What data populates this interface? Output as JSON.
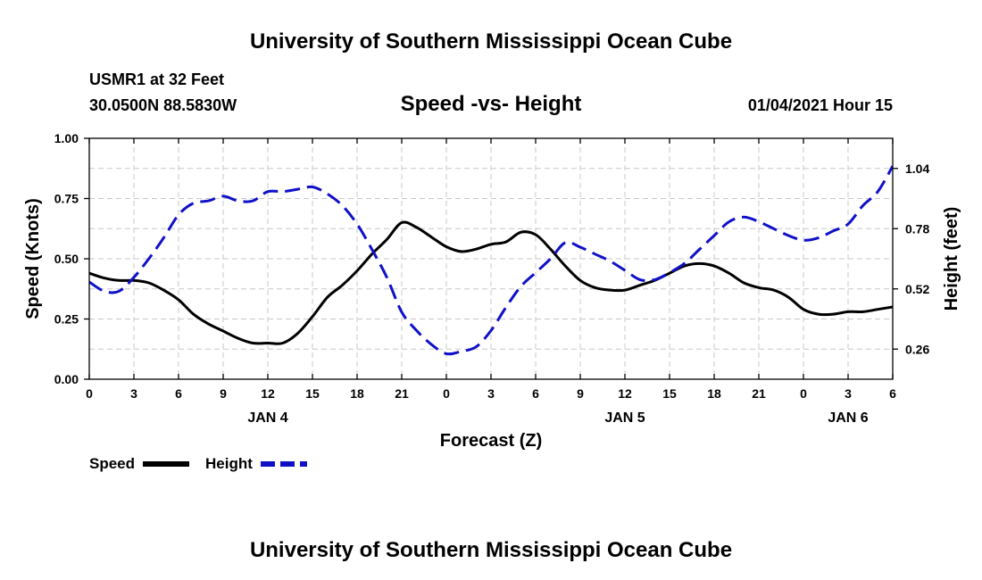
{
  "page": {
    "top_title": "University of Southern Mississippi Ocean Cube",
    "bottom_title": "University of Southern Mississippi Ocean Cube",
    "station_line": "USMR1 at 32 Feet",
    "coords_line": "30.0500N 88.5830W",
    "datetime_line": "01/04/2021 Hour 15"
  },
  "chart_data": {
    "type": "line",
    "title": "Speed -vs- Height",
    "xlabel": "Forecast (Z)",
    "ylabel": "Speed (Knots)",
    "y2label": "Height (feet)",
    "x_unit": "hours since 01/04 00Z",
    "xlim": [
      0,
      54
    ],
    "ylim": [
      0,
      1.0
    ],
    "y2lim": [
      0.13,
      1.17
    ],
    "grid": true,
    "legend": "bottom-left",
    "x_ticks": [
      {
        "x": 0,
        "label": "0"
      },
      {
        "x": 3,
        "label": "3"
      },
      {
        "x": 6,
        "label": "6"
      },
      {
        "x": 9,
        "label": "9"
      },
      {
        "x": 12,
        "label": "12"
      },
      {
        "x": 15,
        "label": "15"
      },
      {
        "x": 18,
        "label": "18"
      },
      {
        "x": 21,
        "label": "21"
      },
      {
        "x": 24,
        "label": "0"
      },
      {
        "x": 27,
        "label": "3"
      },
      {
        "x": 30,
        "label": "6"
      },
      {
        "x": 33,
        "label": "9"
      },
      {
        "x": 36,
        "label": "12"
      },
      {
        "x": 39,
        "label": "15"
      },
      {
        "x": 42,
        "label": "18"
      },
      {
        "x": 45,
        "label": "21"
      },
      {
        "x": 48,
        "label": "0"
      },
      {
        "x": 51,
        "label": "3"
      },
      {
        "x": 54,
        "label": "6"
      }
    ],
    "day_labels": [
      {
        "x": 12,
        "label": "JAN 4"
      },
      {
        "x": 36,
        "label": "JAN 5"
      },
      {
        "x": 51,
        "label": "JAN 6"
      }
    ],
    "y_ticks": [
      {
        "value": 0.0,
        "label": "0.00"
      },
      {
        "value": 0.25,
        "label": "0.25"
      },
      {
        "value": 0.5,
        "label": "0.50"
      },
      {
        "value": 0.75,
        "label": "0.75"
      },
      {
        "value": 1.0,
        "label": "1.00"
      }
    ],
    "y2_ticks": [
      {
        "value": 0.26,
        "label": "0.26"
      },
      {
        "value": 0.52,
        "label": "0.52"
      },
      {
        "value": 0.78,
        "label": "0.78"
      },
      {
        "value": 1.04,
        "label": "1.04"
      }
    ],
    "series": [
      {
        "name": "Speed",
        "axis": "left",
        "color": "#000000",
        "dash": "solid",
        "x": [
          0,
          1,
          2,
          3,
          4,
          5,
          6,
          7,
          8,
          9,
          10,
          11,
          12,
          13,
          14,
          15,
          16,
          17,
          18,
          19,
          20,
          21,
          22,
          23,
          24,
          25,
          26,
          27,
          28,
          29,
          30,
          31,
          32,
          33,
          34,
          35,
          36,
          37,
          38,
          39,
          40,
          41,
          42,
          43,
          44,
          45,
          46,
          47,
          48,
          49,
          50,
          51,
          52,
          53,
          54
        ],
        "values": [
          0.44,
          0.42,
          0.41,
          0.41,
          0.4,
          0.37,
          0.33,
          0.27,
          0.23,
          0.2,
          0.17,
          0.15,
          0.15,
          0.15,
          0.19,
          0.26,
          0.34,
          0.39,
          0.45,
          0.52,
          0.58,
          0.65,
          0.63,
          0.59,
          0.55,
          0.53,
          0.54,
          0.56,
          0.57,
          0.61,
          0.6,
          0.54,
          0.47,
          0.41,
          0.38,
          0.37,
          0.37,
          0.39,
          0.41,
          0.44,
          0.47,
          0.48,
          0.47,
          0.44,
          0.4,
          0.38,
          0.37,
          0.34,
          0.29,
          0.27,
          0.27,
          0.28,
          0.28,
          0.29,
          0.3
        ]
      },
      {
        "name": "Height",
        "axis": "right",
        "color": "#1010c8",
        "dash": "dashed",
        "x": [
          0,
          1,
          2,
          3,
          4,
          5,
          6,
          7,
          8,
          9,
          10,
          11,
          12,
          13,
          14,
          15,
          16,
          17,
          18,
          19,
          20,
          21,
          22,
          23,
          24,
          25,
          26,
          27,
          28,
          29,
          30,
          31,
          32,
          33,
          34,
          35,
          36,
          37,
          38,
          39,
          40,
          41,
          42,
          43,
          44,
          45,
          46,
          47,
          48,
          49,
          50,
          51,
          52,
          53,
          54
        ],
        "values": [
          0.55,
          0.51,
          0.51,
          0.57,
          0.65,
          0.74,
          0.84,
          0.89,
          0.9,
          0.92,
          0.9,
          0.9,
          0.94,
          0.94,
          0.95,
          0.96,
          0.93,
          0.88,
          0.8,
          0.69,
          0.57,
          0.42,
          0.34,
          0.28,
          0.24,
          0.25,
          0.27,
          0.34,
          0.44,
          0.53,
          0.59,
          0.65,
          0.72,
          0.7,
          0.67,
          0.64,
          0.6,
          0.56,
          0.56,
          0.59,
          0.63,
          0.69,
          0.75,
          0.81,
          0.83,
          0.81,
          0.78,
          0.75,
          0.73,
          0.74,
          0.77,
          0.8,
          0.88,
          0.94,
          1.05
        ]
      }
    ]
  }
}
